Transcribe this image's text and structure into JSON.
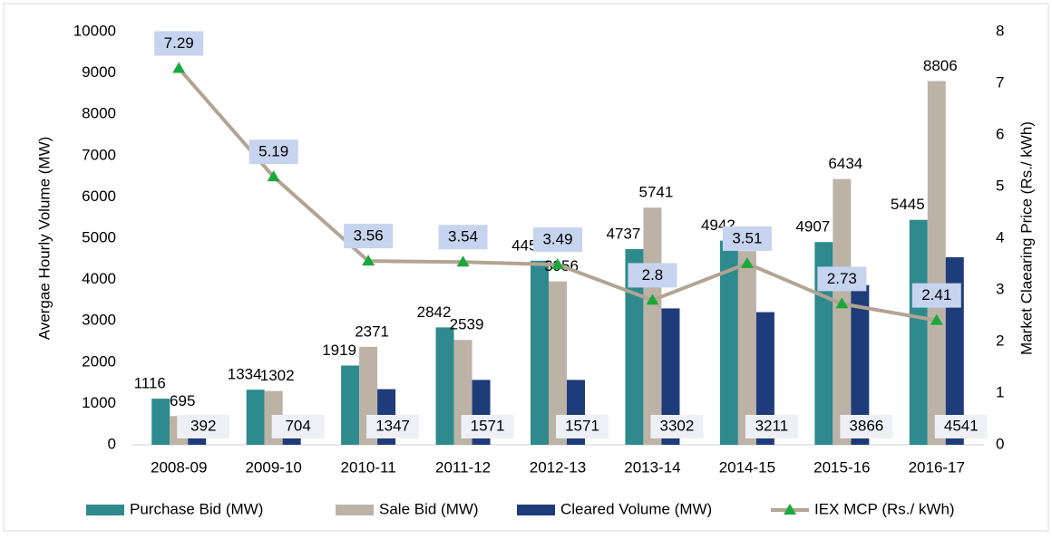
{
  "chart_data": {
    "type": "bar",
    "categories": [
      "2008-09",
      "2009-10",
      "2010-11",
      "2011-12",
      "2012-13",
      "2013-14",
      "2014-15",
      "2015-16",
      "2016-17"
    ],
    "series": [
      {
        "name": "Purchase Bid (MW)",
        "color": "#2e8a8c",
        "values": [
          1116,
          1334,
          1919,
          2842,
          4456,
          4737,
          4942,
          4907,
          5445
        ]
      },
      {
        "name": "Sale Bid (MW)",
        "color": "#bcb3a6",
        "values": [
          695,
          1302,
          2371,
          2539,
          3956,
          5741,
          4689,
          6434,
          8806
        ]
      },
      {
        "name": "Cleared Volume (MW)",
        "color": "#1f3c7a",
        "values": [
          392,
          704,
          1347,
          1571,
          1571,
          3302,
          3211,
          3866,
          4541
        ]
      },
      {
        "name": "IEX MCP (Rs./ kWh)",
        "type": "line",
        "axis": "y2",
        "color": "#b3a493",
        "marker_color": "#1ba83a",
        "values": [
          7.29,
          5.19,
          3.56,
          3.54,
          3.49,
          2.8,
          3.51,
          2.73,
          2.41
        ]
      }
    ],
    "ylabel": "Avergae Hourly Volume (MW)",
    "y2label": "Market Claearing Price (Rs./ kWh)",
    "ylim": [
      0,
      10000
    ],
    "yticks": [
      0,
      1000,
      2000,
      3000,
      4000,
      5000,
      6000,
      7000,
      8000,
      9000,
      10000
    ],
    "y2lim": [
      0,
      8
    ],
    "y2ticks": [
      0,
      1,
      2,
      3,
      4,
      5,
      6,
      7,
      8
    ],
    "legend": "bottom"
  }
}
